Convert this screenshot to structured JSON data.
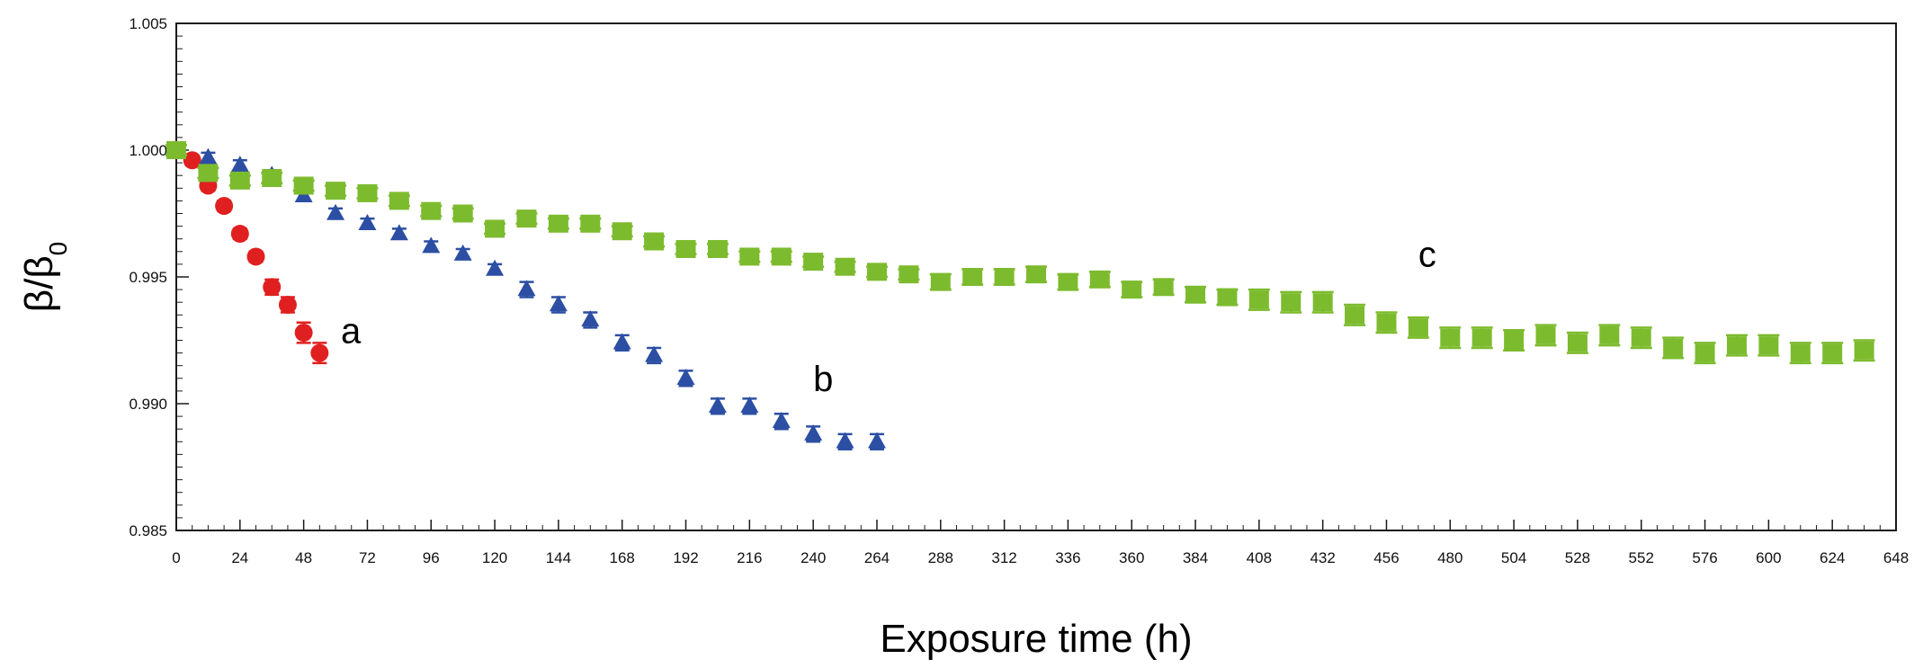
{
  "chart_data": {
    "type": "scatter",
    "xlabel": "Exposure time (h)",
    "ylabel": {
      "main": "β/β",
      "sub": "0"
    },
    "xlim": [
      0,
      648
    ],
    "ylim": [
      0.985,
      1.005
    ],
    "x_ticks": [
      0,
      24,
      48,
      72,
      96,
      120,
      144,
      168,
      192,
      216,
      240,
      264,
      288,
      312,
      336,
      360,
      384,
      408,
      432,
      456,
      480,
      504,
      528,
      552,
      576,
      600,
      624,
      648
    ],
    "y_ticks": [
      0.985,
      0.99,
      0.995,
      1.0,
      1.005
    ],
    "y_tick_labels": [
      "0.985",
      "0.990",
      "0.995",
      "1.000",
      "1.005"
    ],
    "grid": false,
    "legend": "none",
    "series": [
      {
        "name": "a",
        "marker": "circle",
        "color": "#e02020",
        "x": [
          0,
          6,
          12,
          18,
          24,
          30,
          36,
          42,
          48,
          54
        ],
        "y": [
          1.0,
          0.9996,
          0.9986,
          0.9978,
          0.9967,
          0.9958,
          0.9946,
          0.9939,
          0.9928,
          0.992
        ],
        "err": [
          0.0002,
          0.0002,
          0.0002,
          0.0002,
          0.0002,
          0.0002,
          0.0003,
          0.0003,
          0.0004,
          0.0004
        ]
      },
      {
        "name": "b",
        "marker": "triangle",
        "color": "#2c4fa3",
        "x": [
          0,
          12,
          24,
          36,
          48,
          60,
          72,
          84,
          96,
          108,
          120,
          132,
          144,
          156,
          168,
          180,
          192,
          204,
          216,
          228,
          240,
          252,
          264
        ],
        "y": [
          1.0,
          0.9997,
          0.9994,
          0.999,
          0.9982,
          0.9975,
          0.9971,
          0.9967,
          0.9962,
          0.9959,
          0.9953,
          0.9945,
          0.9939,
          0.9933,
          0.9924,
          0.9919,
          0.991,
          0.9899,
          0.9899,
          0.9893,
          0.9888,
          0.9885,
          0.9885
        ],
        "err": [
          0.0002,
          0.0002,
          0.0002,
          0.0002,
          0.0002,
          0.0002,
          0.0002,
          0.0002,
          0.0002,
          0.0002,
          0.0002,
          0.0003,
          0.0003,
          0.0003,
          0.0003,
          0.0003,
          0.0003,
          0.0003,
          0.0003,
          0.0003,
          0.0003,
          0.0003,
          0.0003
        ]
      },
      {
        "name": "c",
        "marker": "square",
        "color": "#7dbb2e",
        "x": [
          0,
          12,
          24,
          36,
          48,
          60,
          72,
          84,
          96,
          108,
          120,
          132,
          144,
          156,
          168,
          180,
          192,
          204,
          216,
          228,
          240,
          252,
          264,
          276,
          288,
          300,
          312,
          324,
          336,
          348,
          360,
          372,
          384,
          396,
          408,
          420,
          432,
          444,
          456,
          468,
          480,
          492,
          504,
          516,
          528,
          540,
          552,
          564,
          576,
          588,
          600,
          612,
          624,
          636
        ],
        "y": [
          1.0,
          0.9991,
          0.9988,
          0.9989,
          0.9986,
          0.9984,
          0.9983,
          0.998,
          0.9976,
          0.9975,
          0.9969,
          0.9973,
          0.9971,
          0.9971,
          0.9968,
          0.9964,
          0.9961,
          0.9961,
          0.9958,
          0.9958,
          0.9956,
          0.9954,
          0.9952,
          0.9951,
          0.9948,
          0.995,
          0.995,
          0.9951,
          0.9948,
          0.9949,
          0.9945,
          0.9946,
          0.9943,
          0.9942,
          0.9941,
          0.994,
          0.994,
          0.9935,
          0.9932,
          0.993,
          0.9926,
          0.9926,
          0.9925,
          0.9927,
          0.9924,
          0.9927,
          0.9926,
          0.9922,
          0.992,
          0.9923,
          0.9923,
          0.992,
          0.992,
          0.9921
        ],
        "err": [
          0.0002,
          0.0002,
          0.0002,
          0.0002,
          0.0002,
          0.0002,
          0.0002,
          0.0002,
          0.0002,
          0.0002,
          0.0002,
          0.0002,
          0.0002,
          0.0002,
          0.0002,
          0.0002,
          0.0002,
          0.0002,
          0.0002,
          0.0002,
          0.0002,
          0.0002,
          0.0002,
          0.0002,
          0.0003,
          0.0003,
          0.0003,
          0.0003,
          0.0003,
          0.0003,
          0.0003,
          0.0003,
          0.0003,
          0.0003,
          0.0004,
          0.0004,
          0.0004,
          0.0004,
          0.0004,
          0.0004,
          0.0004,
          0.0004,
          0.0004,
          0.0004,
          0.0004,
          0.0004,
          0.0004,
          0.0004,
          0.0004,
          0.0004,
          0.0004,
          0.0004,
          0.0004,
          0.0004
        ]
      }
    ],
    "annotations": [
      {
        "text": "a",
        "x": 62,
        "y": 0.9924
      },
      {
        "text": "b",
        "x": 240,
        "y": 0.9905
      },
      {
        "text": "c",
        "x": 468,
        "y": 0.9954
      }
    ]
  }
}
